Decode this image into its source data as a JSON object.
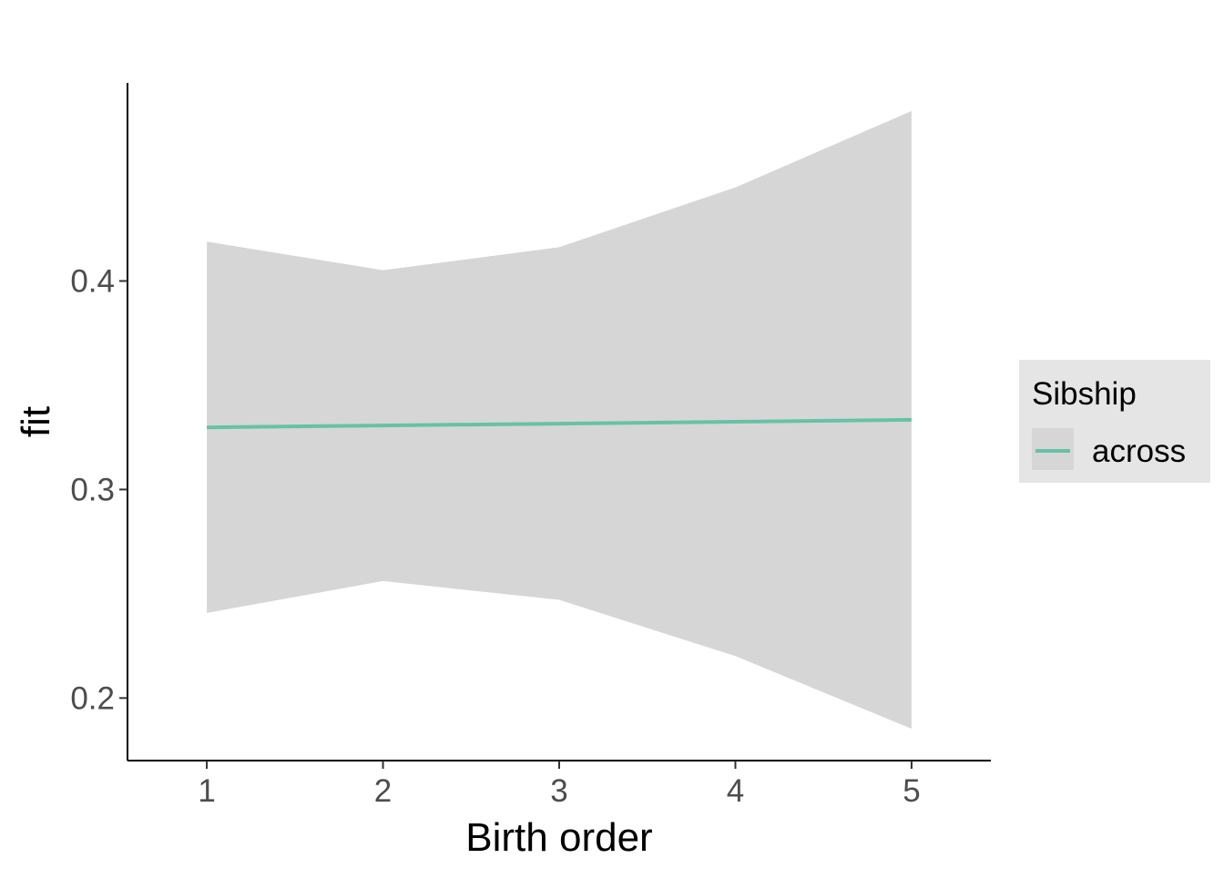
{
  "chart_data": {
    "type": "line",
    "title": "",
    "xlabel": "Birth order",
    "ylabel": "fit",
    "x": [
      1,
      2,
      3,
      4,
      5
    ],
    "xlim": [
      0.55,
      5.45
    ],
    "ylim": [
      0.17,
      0.495
    ],
    "xticks": [
      1,
      2,
      3,
      4,
      5
    ],
    "yticks": [
      0.2,
      0.3,
      0.4
    ],
    "xtick_labels": [
      "1",
      "2",
      "3",
      "4",
      "5"
    ],
    "ytick_labels": [
      "0.2",
      "0.3",
      "0.4"
    ],
    "grid": false,
    "legend": {
      "title": "Sibship",
      "placement": "right",
      "entries": [
        "across"
      ]
    },
    "series": [
      {
        "name": "across",
        "color": "#66c2a5",
        "values": [
          0.3298,
          0.3307,
          0.3316,
          0.3325,
          0.3334
        ],
        "lower": [
          0.2408,
          0.2561,
          0.2471,
          0.2201,
          0.1853
        ],
        "upper": [
          0.4189,
          0.4052,
          0.4162,
          0.4449,
          0.4815
        ]
      }
    ],
    "ribbon_color": "#d6d6d6"
  }
}
